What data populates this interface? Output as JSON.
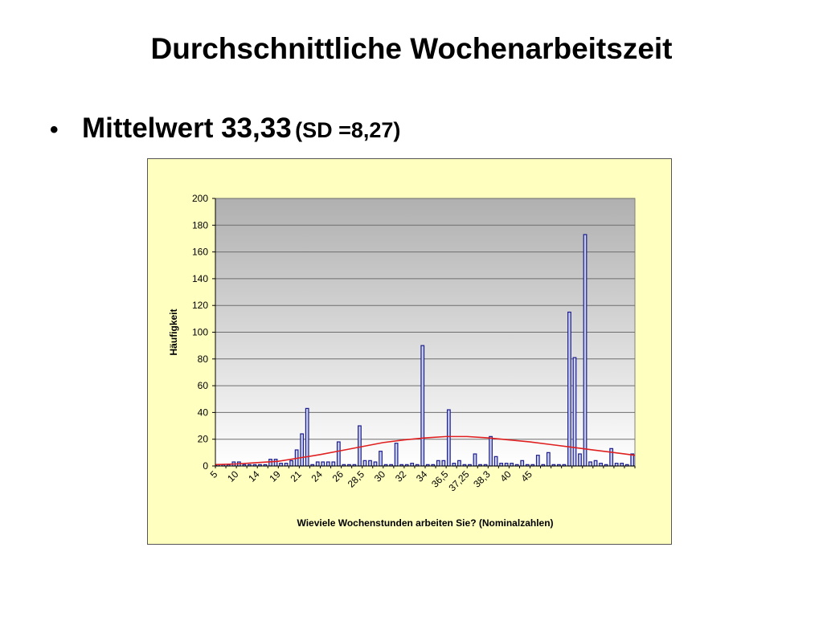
{
  "slide": {
    "title": "Durchschnittliche Wochenarbeitszeit",
    "bullet_main": "Mittelwert 33,33",
    "bullet_sub": "(SD =8,27)"
  },
  "chart_data": {
    "type": "bar",
    "title": "",
    "xlabel": "Wieviele Wochenstunden arbeiten Sie? (Nominalzahlen)",
    "ylabel": "Häufigkeit",
    "ylim": [
      0,
      200
    ],
    "yticks": [
      0,
      20,
      40,
      60,
      80,
      100,
      120,
      140,
      160,
      180,
      200
    ],
    "grid": true,
    "legend": "none",
    "x_tick_labels": [
      "5",
      "10",
      "14",
      "19",
      "21",
      "24",
      "26",
      "28,5",
      "30",
      "32",
      "34",
      "36,5",
      "37,25",
      "38,3",
      "40",
      "45"
    ],
    "x_tick_label_positions": [
      0,
      4,
      8,
      12,
      16,
      20,
      24,
      28,
      32,
      36,
      40,
      44,
      48,
      52,
      56,
      60
    ],
    "values": [
      1,
      1,
      1,
      3,
      3,
      1,
      1,
      1,
      1,
      1,
      5,
      5,
      2,
      2,
      4,
      12,
      24,
      43,
      1,
      3,
      3,
      3,
      3,
      18,
      1,
      1,
      1,
      30,
      4,
      4,
      3,
      11,
      1,
      1,
      17,
      1,
      1,
      2,
      1,
      90,
      1,
      1,
      4,
      4,
      42,
      2,
      4,
      1,
      1,
      9,
      1,
      1,
      22,
      7,
      2,
      2,
      2,
      1,
      4,
      1,
      1,
      8,
      1,
      10,
      1,
      1,
      1,
      115,
      81,
      9,
      173,
      3,
      4,
      2,
      1,
      13,
      2,
      2,
      1,
      9
    ],
    "bar_color": "#1c1c8c",
    "bar_fill": "#c8d0ee",
    "normal_curve": {
      "name": "",
      "color": "#e02020",
      "mean": 33.33,
      "sd": 8.27,
      "points": [
        [
          0,
          1
        ],
        [
          4,
          1.5
        ],
        [
          8,
          2.5
        ],
        [
          12,
          3.5
        ],
        [
          16,
          6
        ],
        [
          20,
          8.5
        ],
        [
          24,
          11.5
        ],
        [
          28,
          14.5
        ],
        [
          32,
          17.5
        ],
        [
          36,
          19.5
        ],
        [
          40,
          21
        ],
        [
          44,
          22
        ],
        [
          48,
          22
        ],
        [
          52,
          21
        ],
        [
          56,
          19.5
        ],
        [
          60,
          18
        ],
        [
          64,
          16
        ],
        [
          68,
          14
        ],
        [
          72,
          12
        ],
        [
          76,
          10
        ],
        [
          80,
          8
        ]
      ]
    }
  }
}
